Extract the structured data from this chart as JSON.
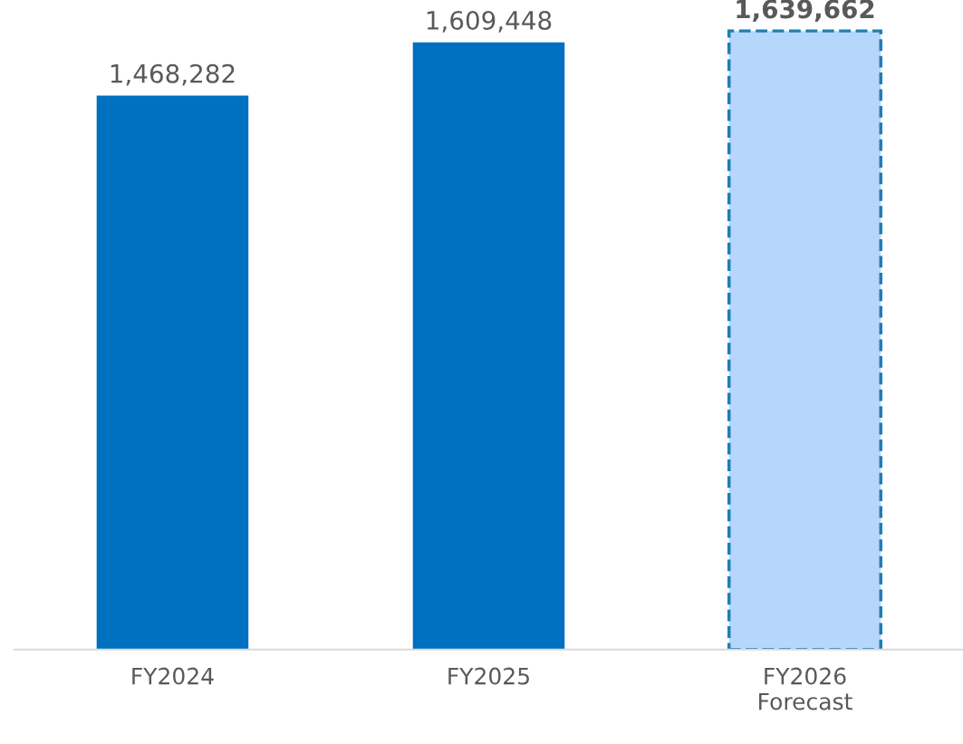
{
  "chart_data": {
    "type": "bar",
    "categories": [
      "FY2024",
      "FY2025",
      "FY2026\nForecast"
    ],
    "series": [
      {
        "color": "#0070c0",
        "values": [
          1468282,
          1609448,
          null
        ],
        "value_labels": [
          "1,468,282",
          "1,609,448",
          null
        ]
      },
      {
        "color": "#b4d7fb",
        "line_style": "dashed",
        "values": [
          null,
          null,
          1639662
        ],
        "value_labels": [
          null,
          null,
          "1,639,662"
        ]
      }
    ],
    "tick_labels": "x",
    "grid": false,
    "legend": false
  }
}
